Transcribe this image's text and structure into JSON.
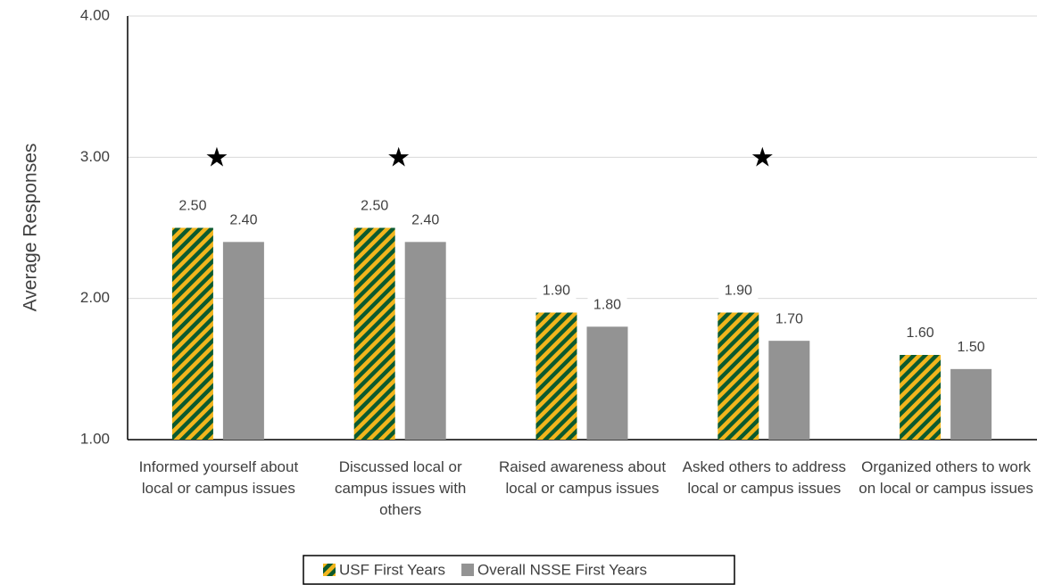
{
  "chart_data": {
    "type": "bar",
    "y_label": "Average Responses",
    "categories": [
      "Informed yourself about local or campus issues",
      "Discussed local or campus issues with others",
      "Raised awareness about local or campus issues",
      "Asked others to address local or campus issues",
      "Organized others to work on local or campus issues"
    ],
    "series": [
      {
        "name": "USF First Years",
        "color": "#0b5a2f",
        "hatch_color": "#f2b51c",
        "values": [
          2.5,
          2.5,
          1.9,
          1.9,
          1.6
        ],
        "value_labels": [
          "2.50",
          "2.50",
          "1.90",
          "1.90",
          "1.60"
        ]
      },
      {
        "name": "Overall NSSE First Years",
        "color": "#939393",
        "values": [
          2.4,
          2.4,
          1.8,
          1.7,
          1.5
        ],
        "value_labels": [
          "2.40",
          "2.40",
          "1.80",
          "1.70",
          "1.50"
        ]
      }
    ],
    "markers": [
      "★",
      "★",
      null,
      "★",
      null
    ],
    "ylim": [
      1,
      4
    ],
    "yticks": [
      {
        "value": 1,
        "label": "1.00"
      },
      {
        "value": 2,
        "label": "2.00"
      },
      {
        "value": 3,
        "label": "3.00"
      },
      {
        "value": 4,
        "label": "4.00"
      }
    ],
    "grid": true
  }
}
